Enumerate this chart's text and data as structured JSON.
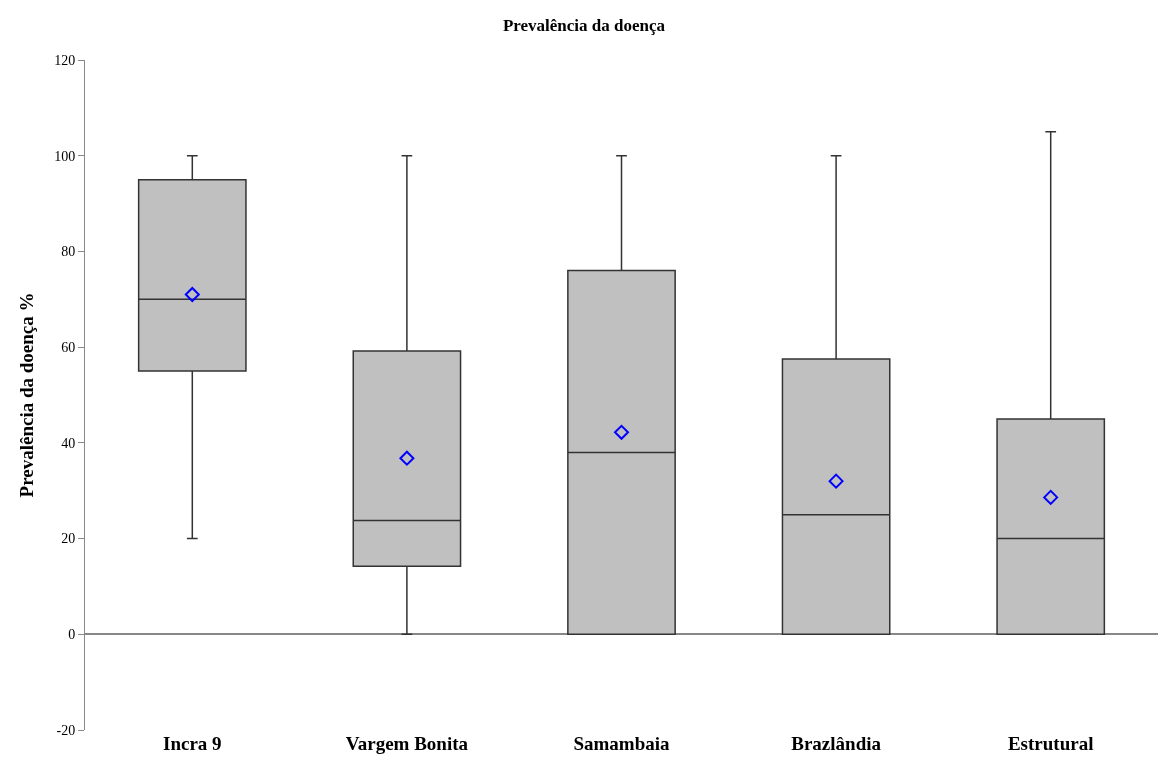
{
  "chart_data": {
    "type": "box",
    "title": "Prevalência da doença",
    "ylabel": "Prevalência da doença %",
    "categories": [
      "Incra 9",
      "Vargem Bonita",
      "Samambaia",
      "Brazlândia",
      "Estrutural"
    ],
    "boxes": [
      {
        "low": 20,
        "q1": 55,
        "median": 70,
        "q3": 95,
        "high": 100,
        "mean": 71
      },
      {
        "low": 0,
        "q1": 14.2,
        "median": 23.8,
        "q3": 59.2,
        "high": 100,
        "mean": 36.8
      },
      {
        "low": 0,
        "q1": 0,
        "median": 38,
        "q3": 76,
        "high": 100,
        "mean": 42.2
      },
      {
        "low": 0,
        "q1": 0,
        "median": 25,
        "q3": 57.5,
        "high": 100,
        "mean": 32
      },
      {
        "low": 0,
        "q1": 0,
        "median": 20,
        "q3": 45,
        "high": 105,
        "mean": 28.6
      }
    ],
    "color": "#c0c0c0",
    "ylim": [
      -20,
      120
    ],
    "yticks": [
      -20,
      0,
      20,
      40,
      60,
      80,
      100,
      120
    ],
    "marker": "diamond"
  }
}
